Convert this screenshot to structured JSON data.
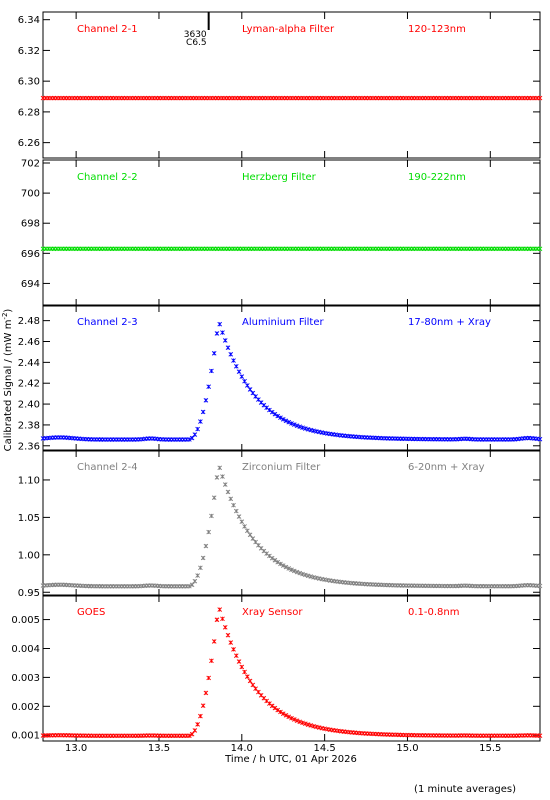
{
  "footer_note": "(1 minute averages)",
  "chart_data": {
    "type": "scatter",
    "xlabel": "Time / h UTC, 01 Apr 2026",
    "ylabel": "Calibrated Signal / (mW m",
    "ylabel_sup": "-2",
    "ylabel_close": ")",
    "xlim": [
      12.8,
      15.8
    ],
    "xticks": [
      13.0,
      13.5,
      14.0,
      14.5,
      15.0,
      15.5
    ],
    "event_marker": {
      "x": 13.8,
      "label_top": "3630",
      "label_bottom": "C6.5"
    },
    "panels": [
      {
        "name": "Channel 2-1",
        "filter": "Lyman-alpha Filter",
        "range": "120-123nm",
        "color": "#ff0000",
        "ylim": [
          6.25,
          6.345
        ],
        "yticks": [
          6.26,
          6.28,
          6.3,
          6.32,
          6.34
        ],
        "decimals": 2,
        "profile": {
          "base": 6.289,
          "peak": 0,
          "noise": 0.0
        }
      },
      {
        "name": "Channel 2-2",
        "filter": "Herzberg Filter",
        "range": "190-222nm",
        "color": "#00dd00",
        "ylim": [
          692.5,
          702.2
        ],
        "yticks": [
          694,
          696,
          698,
          700,
          702
        ],
        "decimals": 0,
        "profile": {
          "base": 696.3,
          "peak": 0,
          "noise": 0.0
        }
      },
      {
        "name": "Channel 2-3",
        "filter": "Aluminium Filter",
        "range": "17-80nm + Xray",
        "color": "#0000ff",
        "ylim": [
          2.355,
          2.495
        ],
        "yticks": [
          2.36,
          2.38,
          2.4,
          2.42,
          2.44,
          2.46,
          2.48
        ],
        "decimals": 2,
        "profile": {
          "base": 2.366,
          "peak": 0.114,
          "noise": 0.001
        }
      },
      {
        "name": "Channel 2-4",
        "filter": "Zirconium Filter",
        "range": "6-20nm + Xray",
        "color": "#808080",
        "ylim": [
          0.945,
          1.14
        ],
        "yticks": [
          0.95,
          1.0,
          1.05,
          1.1
        ],
        "decimals": 2,
        "profile": {
          "base": 0.958,
          "peak": 0.163,
          "noise": 0.001
        }
      },
      {
        "name": "GOES",
        "filter": "Xray Sensor",
        "range": "0.1-0.8nm",
        "color": "#ff0000",
        "ylim": [
          0.0008,
          0.00585
        ],
        "yticks": [
          0.001,
          0.002,
          0.003,
          0.004,
          0.005
        ],
        "decimals": 3,
        "profile": {
          "base": 0.00098,
          "peak": 0.0045,
          "noise": 1e-05
        }
      }
    ]
  }
}
